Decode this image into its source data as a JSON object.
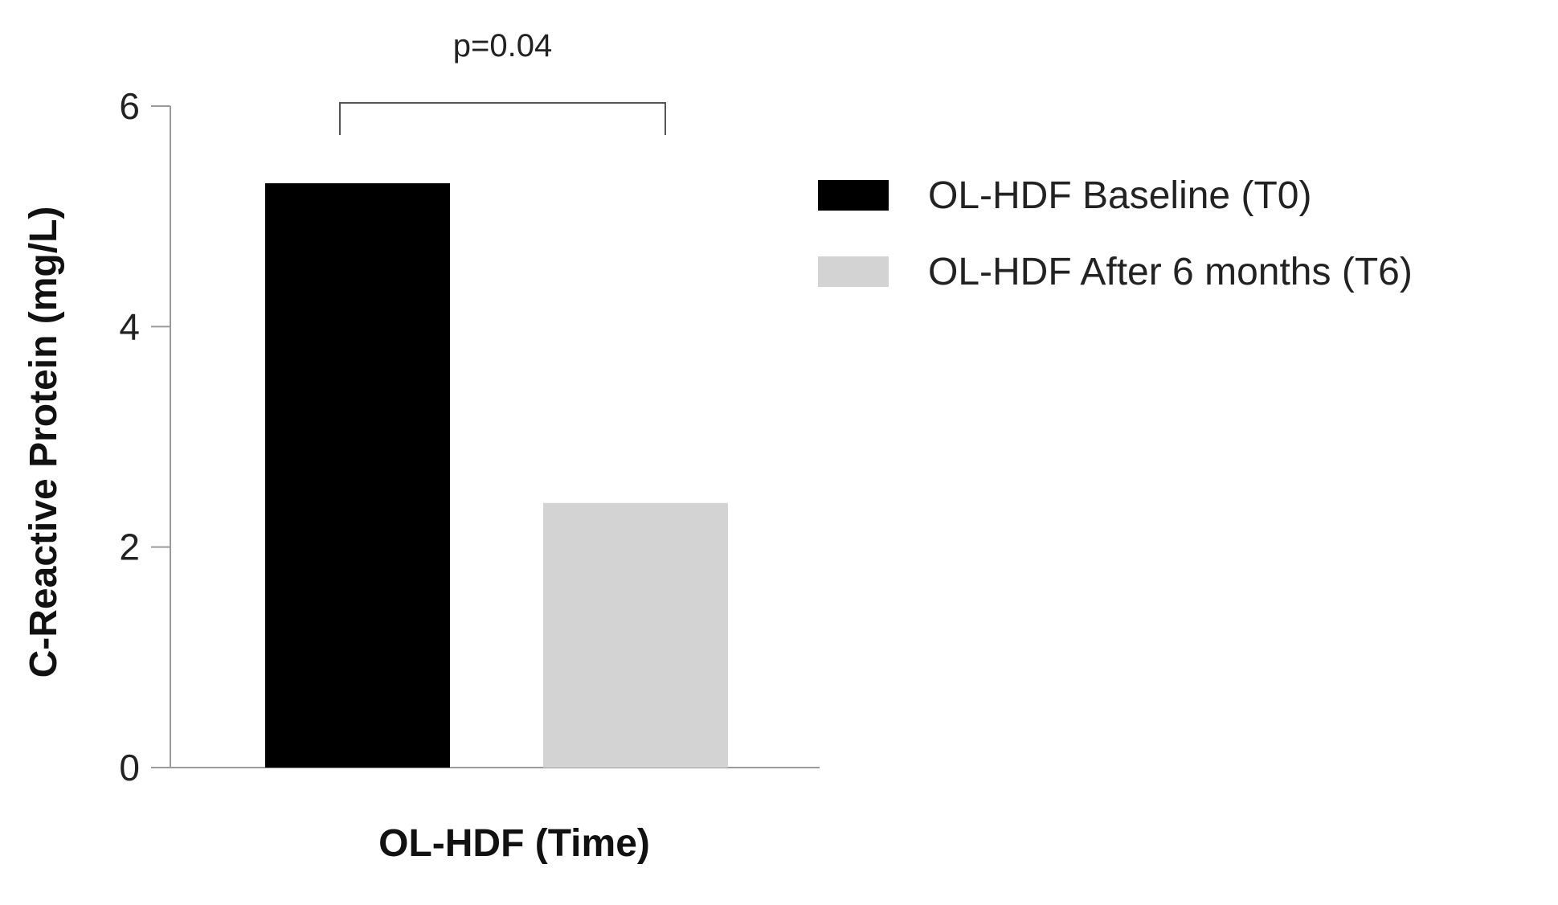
{
  "chart_data": {
    "type": "bar",
    "title": "",
    "xlabel": "OL-HDF (Time)",
    "ylabel": "C-Reactive Protein (mg/L)",
    "ylim": [
      0,
      6
    ],
    "yticks": [
      0,
      2,
      4,
      6
    ],
    "grid": false,
    "legend_position": "right",
    "series": [
      {
        "name": "OL-HDF Baseline (T0)",
        "value": 5.3,
        "color": "#000000"
      },
      {
        "name": "OL-HDF After 6 months (T6)",
        "value": 2.4,
        "color": "#d3d3d3"
      }
    ],
    "annotation": {
      "text": "p=0.04",
      "between": [
        0,
        1
      ]
    }
  }
}
